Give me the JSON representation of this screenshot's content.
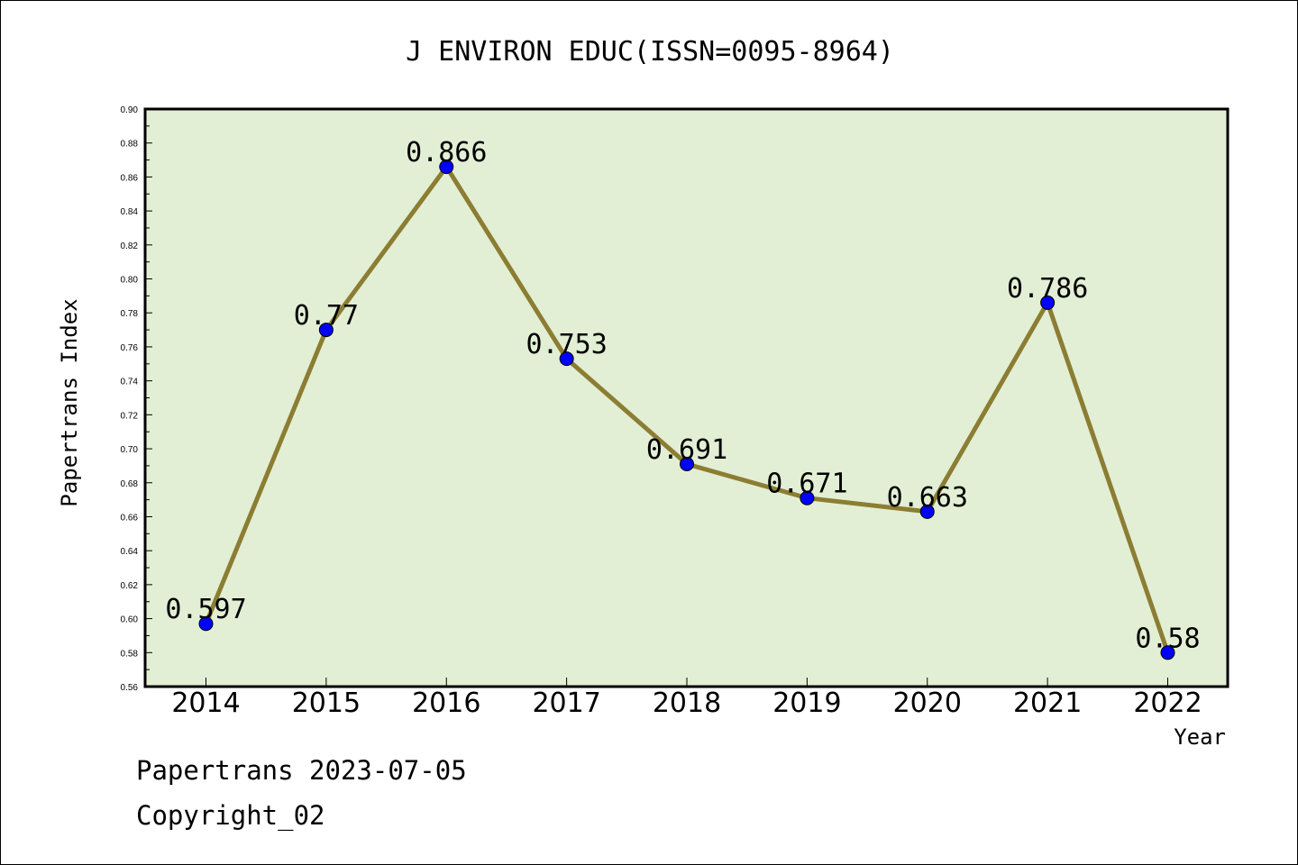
{
  "chart_data": {
    "type": "line",
    "title": "J ENVIRON EDUC(ISSN=0095-8964)",
    "xlabel": "Year",
    "ylabel": "Papertrans Index",
    "categories": [
      "2014",
      "2015",
      "2016",
      "2017",
      "2018",
      "2019",
      "2020",
      "2021",
      "2022"
    ],
    "series": [
      {
        "values": [
          0.597,
          0.77,
          0.866,
          0.753,
          0.691,
          0.671,
          0.663,
          0.786,
          0.58
        ]
      }
    ],
    "data_labels": [
      "0.597",
      "0.77",
      "0.866",
      "0.753",
      "0.691",
      "0.671",
      "0.663",
      "0.786",
      "0.58"
    ],
    "ylim": [
      0.56,
      0.9
    ],
    "yticks": [
      "0.56",
      "0.58",
      "0.60",
      "0.62",
      "0.64",
      "0.66",
      "0.68",
      "0.70",
      "0.72",
      "0.74",
      "0.76",
      "0.78",
      "0.80",
      "0.82",
      "0.84",
      "0.86",
      "0.88",
      "0.90"
    ],
    "grid": false,
    "colors": {
      "plot_background": "#e2efd5",
      "line": "#8b7d32",
      "marker": "#0000ff"
    }
  },
  "footer": {
    "line1": "Papertrans 2023-07-05",
    "line2": "Copyright_02"
  }
}
